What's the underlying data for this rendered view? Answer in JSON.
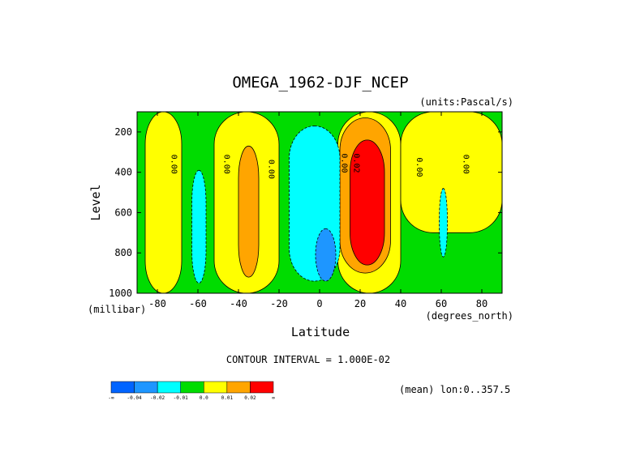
{
  "chart_data": {
    "type": "contour",
    "title": "OMEGA_1962-DJF_NCEP",
    "units_label": "(units:Pascal/s)",
    "xlabel": "Latitude",
    "x_units_label": "(degrees_north)",
    "ylabel": "Level",
    "y_units_label": "(millibar)",
    "xlim": [
      -90,
      90
    ],
    "ylim": [
      1000,
      100
    ],
    "x_ticks": [
      "-80",
      "-60",
      "-40",
      "-20",
      "0",
      "20",
      "40",
      "60",
      "80"
    ],
    "x_tick_values": [
      -80,
      -60,
      -40,
      -20,
      0,
      20,
      40,
      60,
      80
    ],
    "y_ticks": [
      "200",
      "400",
      "600",
      "800",
      "1000"
    ],
    "y_tick_values": [
      200,
      400,
      600,
      800,
      1000
    ],
    "contour_interval_text": "CONTOUR INTERVAL = 1.000E-02",
    "mean_text": "(mean) lon:0..357.5",
    "contour_labels": [
      {
        "text": "0.00",
        "lat": -73,
        "lev": 360
      },
      {
        "text": "0.00",
        "lat": -47,
        "lev": 360
      },
      {
        "text": "0.00",
        "lat": -25,
        "lev": 385
      },
      {
        "text": "0.00",
        "lat": 11,
        "lev": 355
      },
      {
        "text": "0.02",
        "lat": 17,
        "lev": 355
      },
      {
        "text": "0.00",
        "lat": 48,
        "lev": 375
      },
      {
        "text": "0.00",
        "lat": 71,
        "lev": 360
      }
    ],
    "regions": [
      {
        "level": "0.0",
        "color": "#ffff00",
        "lat": [
          -86,
          -68
        ],
        "lev": [
          100,
          1000
        ]
      },
      {
        "level": "0.0",
        "color": "#ffff00",
        "lat": [
          -52,
          -20
        ],
        "lev": [
          100,
          1000
        ]
      },
      {
        "level": "0.0",
        "color": "#ffff00",
        "lat": [
          9,
          40
        ],
        "lev": [
          100,
          1000
        ]
      },
      {
        "level": "0.0",
        "color": "#ffff00",
        "lat": [
          40,
          90
        ],
        "lev": [
          100,
          700
        ]
      },
      {
        "level": "0.01",
        "color": "#ffa500",
        "lat": [
          -40,
          -30
        ],
        "lev": [
          270,
          920
        ]
      },
      {
        "level": "0.01",
        "color": "#ffa500",
        "lat": [
          10,
          35
        ],
        "lev": [
          130,
          900
        ]
      },
      {
        "level": "0.02",
        "color": "#ff0000",
        "lat": [
          15,
          32
        ],
        "lev": [
          240,
          860
        ]
      },
      {
        "level": "-0.02",
        "color": "#00ffff",
        "lat": [
          -15,
          10
        ],
        "lev": [
          170,
          940
        ]
      },
      {
        "level": "-0.04",
        "color": "#1e96ff",
        "lat": [
          -2,
          8
        ],
        "lev": [
          680,
          940
        ]
      },
      {
        "level": "-0.02",
        "color": "#00ffff",
        "lat": [
          -63,
          -56
        ],
        "lev": [
          390,
          950
        ]
      },
      {
        "level": "-0.02",
        "color": "#00ffff",
        "lat": [
          59,
          63
        ],
        "lev": [
          480,
          820
        ]
      }
    ],
    "colorbar": {
      "colors": [
        "#0064ff",
        "#1e96ff",
        "#00ffff",
        "#00dc00",
        "#ffff00",
        "#ffa500",
        "#ff0000"
      ],
      "labels": [
        "-∞",
        "-0.04",
        "-0.02",
        "-0.01",
        "0.0",
        "0.01",
        "0.02",
        "∞"
      ]
    },
    "background_color": "#00dc00",
    "grid": false
  }
}
